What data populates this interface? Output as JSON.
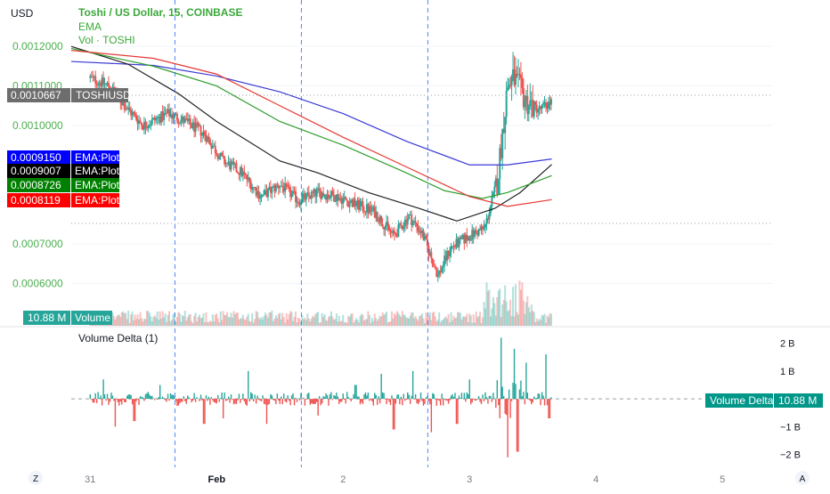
{
  "header": {
    "currency": "USD",
    "symbol_title": "Toshi / US Dollar, 15, COINBASE",
    "indicator_ema": "EMA",
    "indicator_vol": "Vol · TOSHI"
  },
  "colors": {
    "up": "#26a69a",
    "down": "#ef5350",
    "ema_blue": "#3a3ad8",
    "ema_black": "#222222",
    "ema_green": "#2e9e2e",
    "ema_red": "#e53935",
    "session_line": "#2962ff",
    "title_green": "#3ba93b",
    "axis_text_green": "#4caf50"
  },
  "price_labels": {
    "last_price": "0.0010667",
    "last_symbol": "TOSHIUSD",
    "ema_labels": [
      {
        "value": "0.0009150",
        "name": "EMA:Plot",
        "color": "#0000ff"
      },
      {
        "value": "0.0009007",
        "name": "EMA:Plot",
        "color": "#000000"
      },
      {
        "value": "0.0008726",
        "name": "EMA:Plot",
        "color": "#008000"
      },
      {
        "value": "0.0008119",
        "name": "EMA:Plot",
        "color": "#ff0000"
      }
    ],
    "volume_value": "10.88 M",
    "volume_label": "Volume"
  },
  "delta_pane": {
    "title": "Volume Delta (1)",
    "label": "Volume Delta",
    "value": "10.88 M"
  },
  "bottom": {
    "left_icon": "Z",
    "right_icon": "A"
  },
  "chart_data": [
    {
      "type": "candlestick",
      "title": "Toshi / US Dollar, 15, COINBASE",
      "y_axis_ticks": [
        "0.0012000",
        "0.0011000",
        "0.0010000",
        "0.0007000",
        "0.0006000"
      ],
      "ylim": [
        0.00054,
        0.00125
      ],
      "x_tick_labels": [
        "31",
        "Feb",
        "2",
        "3",
        "4",
        "5"
      ],
      "x_tick_days": [
        0,
        1,
        2,
        3,
        4,
        5
      ],
      "xlim_days": [
        -0.15,
        5.4
      ],
      "session_breaks_days": [
        0.67,
        1.67,
        2.67
      ],
      "last_price": 0.0010667,
      "anchors": [
        [
          0.0,
          0.00112
        ],
        [
          0.15,
          0.0011
        ],
        [
          0.3,
          0.00104
        ],
        [
          0.42,
          0.001
        ],
        [
          0.55,
          0.00102
        ],
        [
          0.62,
          0.00103
        ],
        [
          0.75,
          0.00101
        ],
        [
          0.9,
          0.00098
        ],
        [
          1.05,
          0.00091
        ],
        [
          1.2,
          0.00088
        ],
        [
          1.35,
          0.00082
        ],
        [
          1.5,
          0.00085
        ],
        [
          1.65,
          0.00081
        ],
        [
          1.8,
          0.00083
        ],
        [
          1.95,
          0.00082
        ],
        [
          2.1,
          0.0008
        ],
        [
          2.25,
          0.00078
        ],
        [
          2.4,
          0.00072
        ],
        [
          2.52,
          0.00077
        ],
        [
          2.62,
          0.00073
        ],
        [
          2.75,
          0.00062
        ],
        [
          2.85,
          0.00069
        ],
        [
          3.0,
          0.00072
        ],
        [
          3.12,
          0.00074
        ],
        [
          3.22,
          0.00086
        ],
        [
          3.3,
          0.0011
        ],
        [
          3.35,
          0.00112
        ],
        [
          3.45,
          0.00106
        ],
        [
          3.55,
          0.00104
        ],
        [
          3.65,
          0.00106
        ]
      ],
      "ema_series": [
        {
          "name": "EMA:Plot",
          "value": 0.000915,
          "color": "#3a3ad8",
          "points": [
            [
              -0.15,
              0.001162
            ],
            [
              0.5,
              0.001152
            ],
            [
              1.0,
              0.001125
            ],
            [
              1.5,
              0.001085
            ],
            [
              2.0,
              0.00103
            ],
            [
              2.5,
              0.00096
            ],
            [
              3.0,
              0.0009
            ],
            [
              3.3,
              0.0009
            ],
            [
              3.65,
              0.000915
            ]
          ]
        },
        {
          "name": "EMA:Plot",
          "value": 0.0009007,
          "color": "#222222",
          "points": [
            [
              -0.15,
              0.0012
            ],
            [
              0.3,
              0.001155
            ],
            [
              0.7,
              0.00108
            ],
            [
              1.0,
              0.00101
            ],
            [
              1.5,
              0.00091
            ],
            [
              1.8,
              0.00088
            ],
            [
              2.2,
              0.00083
            ],
            [
              2.6,
              0.00079
            ],
            [
              2.9,
              0.000758
            ],
            [
              3.2,
              0.00079
            ],
            [
              3.4,
              0.00083
            ],
            [
              3.65,
              0.000901
            ]
          ]
        },
        {
          "name": "EMA:Plot",
          "value": 0.0008726,
          "color": "#2e9e2e",
          "points": [
            [
              -0.15,
              0.001195
            ],
            [
              0.5,
              0.00115
            ],
            [
              1.0,
              0.0011
            ],
            [
              1.5,
              0.00101
            ],
            [
              2.0,
              0.00095
            ],
            [
              2.5,
              0.00088
            ],
            [
              2.8,
              0.000835
            ],
            [
              3.1,
              0.000815
            ],
            [
              3.3,
              0.00083
            ],
            [
              3.65,
              0.000873
            ]
          ]
        },
        {
          "name": "EMA:Plot",
          "value": 0.0008119,
          "color": "#e53935",
          "points": [
            [
              -0.15,
              0.00119
            ],
            [
              0.5,
              0.00117
            ],
            [
              1.0,
              0.00113
            ],
            [
              1.5,
              0.00105
            ],
            [
              2.0,
              0.00097
            ],
            [
              2.5,
              0.000895
            ],
            [
              3.0,
              0.00082
            ],
            [
              3.3,
              0.000795
            ],
            [
              3.65,
              0.000812
            ]
          ]
        }
      ]
    },
    {
      "type": "bar",
      "title": "Volume Delta (1)",
      "y_axis_ticks": [
        "2 B",
        "1 B",
        "−1 B",
        "−2 B"
      ],
      "y_tick_values": [
        2,
        1,
        -1,
        -2
      ],
      "ylim": [
        -2.3,
        2.5
      ],
      "unit": "B",
      "last_value": "10.88 M",
      "spikes": [
        [
          0.1,
          0.7
        ],
        [
          0.2,
          -1.0
        ],
        [
          0.35,
          -0.8
        ],
        [
          0.55,
          0.5
        ],
        [
          0.9,
          -0.9
        ],
        [
          1.05,
          -0.7
        ],
        [
          1.25,
          1.0
        ],
        [
          1.4,
          -0.9
        ],
        [
          1.8,
          -0.6
        ],
        [
          2.1,
          0.5
        ],
        [
          2.3,
          0.9
        ],
        [
          2.4,
          -1.1
        ],
        [
          2.55,
          1.0
        ],
        [
          2.7,
          -1.2
        ],
        [
          2.9,
          -0.9
        ],
        [
          3.0,
          0.7
        ],
        [
          3.25,
          2.2
        ],
        [
          3.3,
          -2.1
        ],
        [
          3.35,
          1.8
        ],
        [
          3.38,
          -1.9
        ],
        [
          3.45,
          1.3
        ],
        [
          3.6,
          1.6
        ],
        [
          3.63,
          -0.7
        ]
      ]
    }
  ]
}
